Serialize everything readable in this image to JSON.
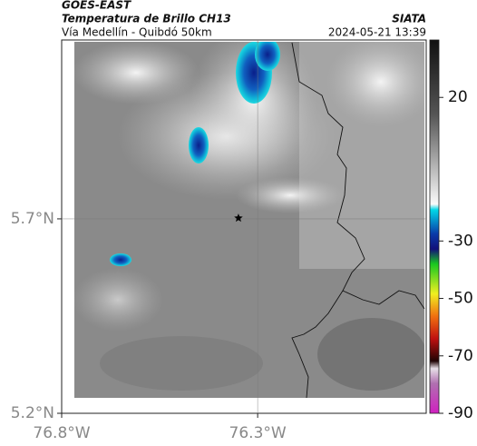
{
  "chart_data": {
    "type": "map",
    "title": "GOES-EAST",
    "subtitle": "Temperatura de Brillo CH13",
    "source": "SIATA",
    "region": "Vía Medellín - Quibdó 50km",
    "timestamp": "2024-05-21 13:39",
    "xlim": [
      -76.8,
      -75.87
    ],
    "ylim": [
      5.2,
      6.16
    ],
    "xticks": [
      {
        "value": -76.8,
        "label": "76.8°W"
      },
      {
        "value": -76.3,
        "label": "76.3°W"
      }
    ],
    "yticks": [
      {
        "value": 5.2,
        "label": "5.2°N"
      },
      {
        "value": 5.7,
        "label": "5.7°N"
      }
    ],
    "grid": true,
    "marker": {
      "lon": -76.349,
      "lat": 5.702
    },
    "clim": [
      40,
      -90
    ],
    "cticks": [
      20,
      -30,
      -50,
      -70,
      -90
    ]
  }
}
